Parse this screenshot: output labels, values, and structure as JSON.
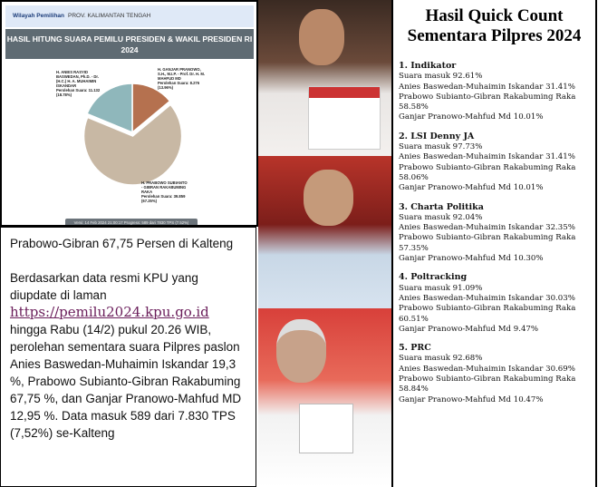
{
  "kpu": {
    "region_label": "Wilayah Pemilihan",
    "region_value": "PROV. KALIMANTAN TENGAH",
    "title": "HASIL HITUNG SUARA PEMILU PRESIDEN & WAKIL PRESIDEN RI 2024",
    "version": "Versi: 14 Feb 2024 21:00:17 Progress: 589 dari 7830 TPS (7.52%)"
  },
  "chart_data": {
    "type": "pie",
    "slices": [
      {
        "name": "H. GANJAR PRANOWO, S.H., M.I.P. - Prof. Dr. H. M. MAHFUD MD",
        "votes_label": "Perolehan Suara: 8.276",
        "pct_label": "(13.96%)",
        "value": 13.96,
        "color": "#b5714f"
      },
      {
        "name": "H. PRABOWO SUBIANTO - GIBRAN RAKABUMING RAKA",
        "votes_label": "Perolehan Suara: 39.859",
        "pct_label": "(67.25%)",
        "value": 67.25,
        "color": "#c8b8a4"
      },
      {
        "name": "H. ANIES RASYID BASWEDAN, Ph.D. - Dr. (H.C.) H. A. MUHAIMIN ISKANDAR",
        "votes_label": "Perolehan Suara: 11.132",
        "pct_label": "(18.78%)",
        "value": 18.78,
        "color": "#8fb7bb"
      }
    ]
  },
  "article": {
    "headline": "Prabowo-Gibran 67,75 Persen di Kalteng",
    "p1": "Berdasarkan data resmi KPU yang diupdate di laman",
    "link": "https://pemilu2024.kpu.go.id",
    "p2": "hingga Rabu (14/2) pukul 20.26 WIB, perolehan sementara suara Pilpres paslon Anies Baswedan-Muhaimin Iskandar 19,3 %, Prabowo Subianto-Gibran Rakabuming 67,75 %, dan Ganjar Pranowo-Mahfud MD 12,95 %. Data masuk 589 dari 7.830 TPS (7,52%) se-Kalteng"
  },
  "right": {
    "title": "Hasil Quick Count Sementara Pilpres 2024",
    "polls": [
      {
        "name": "1. Indikator",
        "lines": [
          "Suara masuk 92.61%",
          "Anies Baswedan-Muhaimin Iskandar 31.41%",
          "Prabowo Subianto-Gibran Rakabuming Raka 58.58%",
          "Ganjar Pranowo-Mahfud Md 10.01%"
        ]
      },
      {
        "name": "2. LSI Denny JA",
        "lines": [
          "Suara masuk 97.73%",
          "Anies Baswedan-Muhaimin Iskandar 31.41%",
          "Prabowo Subianto-Gibran Rakabuming Raka 58.06%",
          "Ganjar Pranowo-Mahfud Md 10.01%"
        ]
      },
      {
        "name": "3. Charta Politika",
        "lines": [
          "Suara masuk 92.04%",
          "Anies Baswedan-Muhaimin Iskandar 32.35%",
          "Prabowo Subianto-Gibran Rakabuming Raka 57.35%",
          "Ganjar Pranowo-Mahfud Md 10.30%"
        ]
      },
      {
        "name": "4. Poltracking",
        "lines": [
          "Suara masuk 91.09%",
          "Anies Baswedan-Muhaimin Iskandar 30.03%",
          "Prabowo Subianto-Gibran Rakabuming Raka 60.51%",
          "Ganjar Pranowo-Mahfud Md 9.47%"
        ]
      },
      {
        "name": "5. PRC",
        "lines": [
          "Suara masuk 92.68%",
          "Anies Baswedan-Muhaimin Iskandar 30.69%",
          "Prabowo Subianto-Gibran Rakabuming Raka 58.84%",
          "Ganjar Pranowo-Mahfud Md 10.47%"
        ]
      }
    ]
  }
}
